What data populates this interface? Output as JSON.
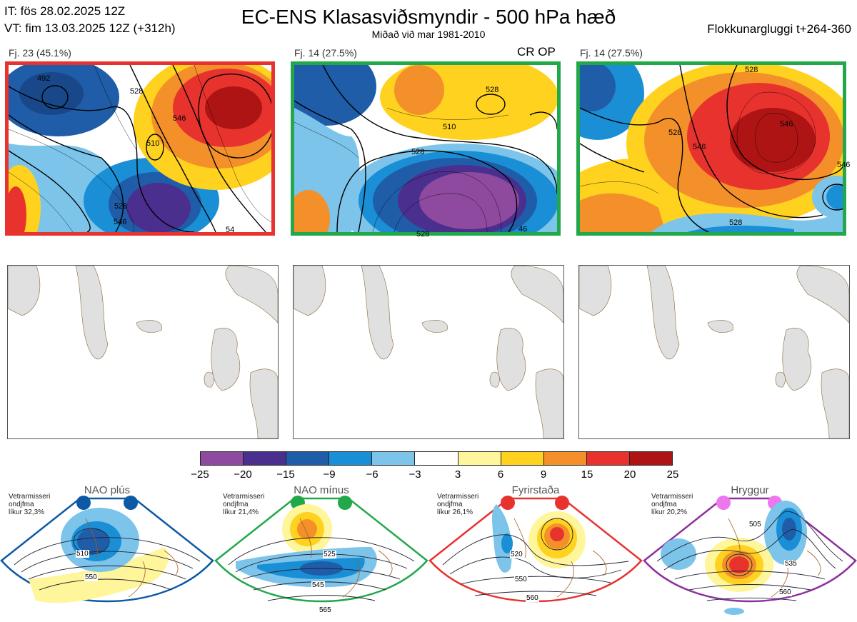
{
  "header": {
    "it_line": "IT: fös 28.02.2025 12Z",
    "vt_line": "VT: fim 13.03.2025 12Z  (+312h)",
    "title": "EC-ENS Klasasviðsmyndir - 500 hPa hæð",
    "subtitle": "Miðað við mar 1981-2010",
    "window": "Flokkunargluggi t+264-360"
  },
  "panels": [
    {
      "label": "Fj. 23 (45.1%)",
      "border_color": "#e8322e",
      "contours": [
        "492",
        "528",
        "546",
        "510",
        "528",
        "546",
        "54"
      ]
    },
    {
      "label": "Fj. 14 (27.5%)",
      "border_color": "#22a84a",
      "tag": "CR OP",
      "contours": [
        "528",
        "510",
        "528",
        "528",
        "46"
      ]
    },
    {
      "label": "Fj. 14 (27.5%)",
      "border_color": "#22a84a",
      "contours": [
        "528",
        "528",
        "546",
        "546",
        "528",
        "546"
      ]
    }
  ],
  "colorbar": {
    "ticks": [
      "−25",
      "−20",
      "−15",
      "−9",
      "−6",
      "−3",
      "3",
      "6",
      "9",
      "15",
      "20",
      "25"
    ],
    "colors": [
      "#8e4a9e",
      "#4a2f8f",
      "#1f5da8",
      "#1a8fd6",
      "#7cc4ea",
      "#ffffff",
      "#fff59a",
      "#ffd21f",
      "#f4902a",
      "#e8322e",
      "#ae1414"
    ]
  },
  "regimes": [
    {
      "title": "NAO plús",
      "text": [
        "Vetrarmisseri",
        "ondjfma",
        "líkur 32,3%"
      ],
      "color": "#0d59a6",
      "labels": [
        "510",
        "550"
      ]
    },
    {
      "title": "NAO mínus",
      "text": [
        "Vetrarmisseri",
        "ondjfma",
        "líkur 21,4%"
      ],
      "color": "#22a84a",
      "labels": [
        "525",
        "545",
        "565"
      ]
    },
    {
      "title": "Fyrirstaða",
      "text": [
        "Vetrarmisseri",
        "ondjfma",
        "líkur 26,1%"
      ],
      "color": "#e8322e",
      "labels": [
        "520",
        "550",
        "560"
      ]
    },
    {
      "title": "Hryggur",
      "text": [
        "Vetrarmisseri",
        "ondjfma",
        "líkur 20,2%"
      ],
      "color": "#8e2f9e",
      "dot_color": "#ee77ee",
      "labels": [
        "505",
        "535",
        "560"
      ]
    }
  ]
}
